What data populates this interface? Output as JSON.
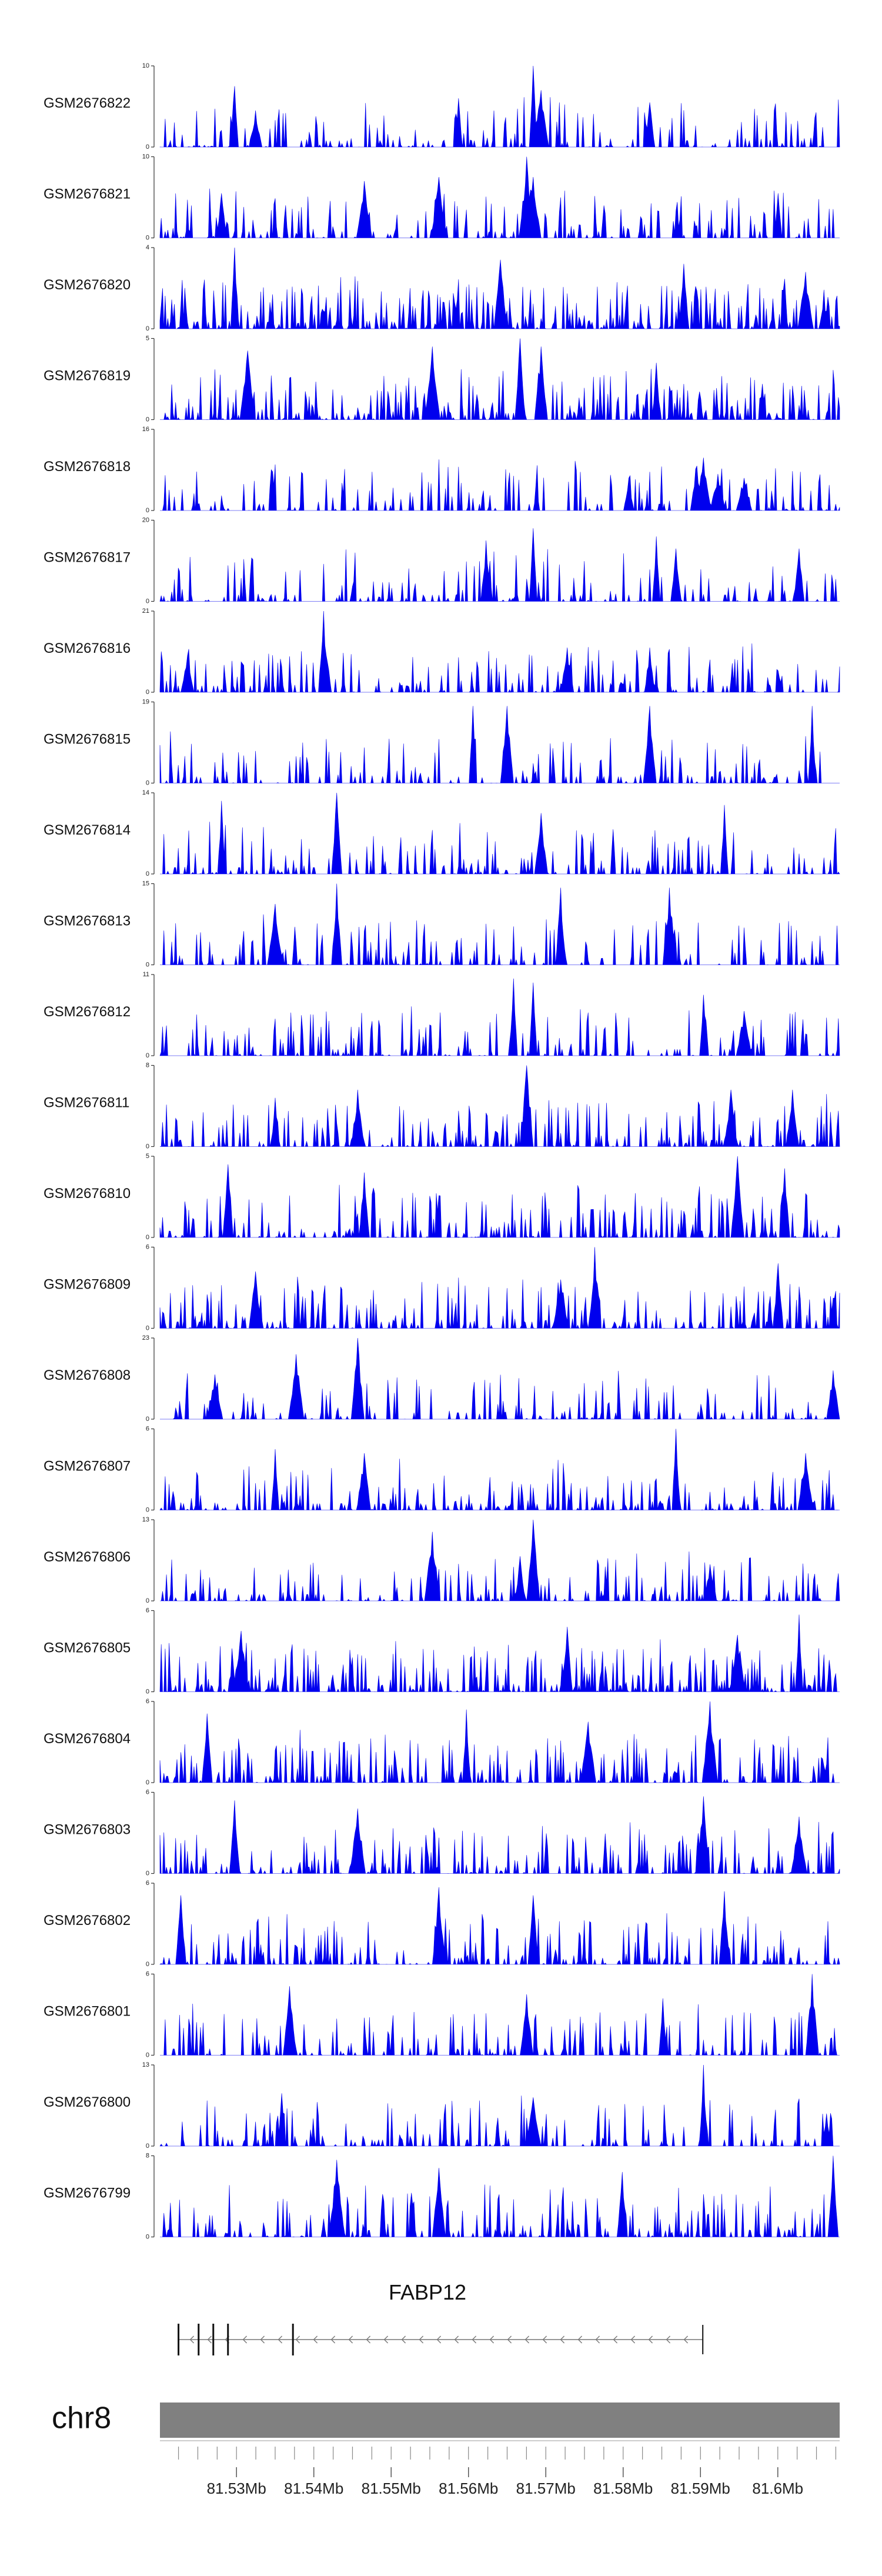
{
  "colors": {
    "signal": "#0000ee",
    "axis": "#333333",
    "ideogram": "#808080",
    "gene": "#111111"
  },
  "chart_data": {
    "type": "area",
    "description_free": true,
    "tracks": [
      {
        "name": "GSM2676822",
        "ymax": 10,
        "ymin": 0,
        "seed": 22,
        "density": 0.55,
        "peaks": [
          [
            0.11,
            0.75
          ],
          [
            0.14,
            0.45
          ],
          [
            0.44,
            0.6
          ],
          [
            0.55,
            1.0
          ],
          [
            0.56,
            0.7
          ],
          [
            0.72,
            0.55
          ]
        ]
      },
      {
        "name": "GSM2676821",
        "ymax": 10,
        "ymin": 0,
        "seed": 21,
        "density": 0.6,
        "peaks": [
          [
            0.09,
            0.55
          ],
          [
            0.3,
            0.7
          ],
          [
            0.41,
            0.75
          ],
          [
            0.54,
            1.0
          ],
          [
            0.55,
            0.75
          ],
          [
            0.91,
            0.55
          ]
        ]
      },
      {
        "name": "GSM2676820",
        "ymax": 4,
        "ymin": 0,
        "seed": 20,
        "density": 0.95,
        "peaks": [
          [
            0.11,
            1.0
          ],
          [
            0.5,
            0.85
          ],
          [
            0.77,
            0.8
          ],
          [
            0.95,
            0.7
          ]
        ]
      },
      {
        "name": "GSM2676819",
        "ymax": 5,
        "ymin": 0,
        "seed": 19,
        "density": 0.85,
        "peaks": [
          [
            0.13,
            0.85
          ],
          [
            0.4,
            0.9
          ],
          [
            0.53,
            1.0
          ],
          [
            0.56,
            0.9
          ],
          [
            0.73,
            0.7
          ]
        ]
      },
      {
        "name": "GSM2676818",
        "ymax": 16,
        "ymin": 0,
        "seed": 18,
        "density": 0.45,
        "peaks": [
          [
            0.8,
            0.65
          ],
          [
            0.82,
            0.45
          ],
          [
            0.79,
            0.55
          ],
          [
            0.86,
            0.4
          ],
          [
            0.69,
            0.4
          ]
        ]
      },
      {
        "name": "GSM2676817",
        "ymax": 20,
        "ymin": 0,
        "seed": 17,
        "density": 0.45,
        "peaks": [
          [
            0.48,
            0.75
          ],
          [
            0.55,
            0.9
          ],
          [
            0.73,
            0.8
          ],
          [
            0.76,
            0.65
          ],
          [
            0.94,
            0.65
          ]
        ]
      },
      {
        "name": "GSM2676816",
        "ymax": 21,
        "ymin": 0,
        "seed": 16,
        "density": 0.55,
        "peaks": [
          [
            0.24,
            1.0
          ],
          [
            0.6,
            0.55
          ],
          [
            0.72,
            0.55
          ],
          [
            0.04,
            0.45
          ]
        ]
      },
      {
        "name": "GSM2676815",
        "ymax": 19,
        "ymin": 0,
        "seed": 15,
        "density": 0.45,
        "peaks": [
          [
            0.46,
            0.95
          ],
          [
            0.51,
            0.95
          ],
          [
            0.72,
            0.95
          ],
          [
            0.96,
            0.95
          ]
        ]
      },
      {
        "name": "GSM2676814",
        "ymax": 14,
        "ymin": 0,
        "seed": 14,
        "density": 0.5,
        "peaks": [
          [
            0.09,
            0.9
          ],
          [
            0.26,
            1.0
          ],
          [
            0.83,
            0.85
          ],
          [
            0.56,
            0.75
          ]
        ]
      },
      {
        "name": "GSM2676813",
        "ymax": 15,
        "ymin": 0,
        "seed": 13,
        "density": 0.5,
        "peaks": [
          [
            0.26,
            1.0
          ],
          [
            0.59,
            0.95
          ],
          [
            0.75,
            0.95
          ],
          [
            0.17,
            0.75
          ]
        ]
      },
      {
        "name": "GSM2676812",
        "ymax": 11,
        "ymin": 0,
        "seed": 12,
        "density": 0.55,
        "peaks": [
          [
            0.52,
            0.95
          ],
          [
            0.55,
            0.9
          ],
          [
            0.8,
            0.75
          ],
          [
            0.86,
            0.55
          ]
        ]
      },
      {
        "name": "GSM2676811",
        "ymax": 8,
        "ymin": 0,
        "seed": 11,
        "density": 0.6,
        "peaks": [
          [
            0.54,
            1.0
          ],
          [
            0.29,
            0.7
          ],
          [
            0.84,
            0.7
          ],
          [
            0.93,
            0.7
          ],
          [
            0.17,
            0.6
          ]
        ]
      },
      {
        "name": "GSM2676810",
        "ymax": 5,
        "ymin": 0,
        "seed": 10,
        "density": 0.7,
        "peaks": [
          [
            0.1,
            0.9
          ],
          [
            0.85,
            1.0
          ],
          [
            0.92,
            0.85
          ],
          [
            0.3,
            0.8
          ]
        ]
      },
      {
        "name": "GSM2676809",
        "ymax": 6,
        "ymin": 0,
        "seed": 9,
        "density": 0.65,
        "peaks": [
          [
            0.64,
            1.0
          ],
          [
            0.14,
            0.7
          ],
          [
            0.91,
            0.8
          ],
          [
            0.59,
            0.6
          ]
        ]
      },
      {
        "name": "GSM2676808",
        "ymax": 23,
        "ymin": 0,
        "seed": 8,
        "density": 0.45,
        "peaks": [
          [
            0.29,
            1.0
          ],
          [
            0.2,
            0.8
          ],
          [
            0.08,
            0.55
          ],
          [
            0.99,
            0.6
          ]
        ]
      },
      {
        "name": "GSM2676807",
        "ymax": 6,
        "ymin": 0,
        "seed": 7,
        "density": 0.65,
        "peaks": [
          [
            0.76,
            1.0
          ],
          [
            0.17,
            0.75
          ],
          [
            0.3,
            0.7
          ],
          [
            0.95,
            0.7
          ]
        ]
      },
      {
        "name": "GSM2676806",
        "ymax": 13,
        "ymin": 0,
        "seed": 6,
        "density": 0.45,
        "peaks": [
          [
            0.55,
            1.0
          ],
          [
            0.4,
            0.85
          ],
          [
            0.53,
            0.55
          ],
          [
            0.81,
            0.45
          ]
        ]
      },
      {
        "name": "GSM2676805",
        "ymax": 6,
        "ymin": 0,
        "seed": 5,
        "density": 0.9,
        "peaks": [
          [
            0.94,
            0.95
          ],
          [
            0.12,
            0.75
          ],
          [
            0.6,
            0.8
          ],
          [
            0.85,
            0.7
          ]
        ]
      },
      {
        "name": "GSM2676804",
        "ymax": 6,
        "ymin": 0,
        "seed": 4,
        "density": 0.65,
        "peaks": [
          [
            0.45,
            0.9
          ],
          [
            0.81,
            1.0
          ],
          [
            0.07,
            0.85
          ],
          [
            0.63,
            0.75
          ]
        ]
      },
      {
        "name": "GSM2676803",
        "ymax": 6,
        "ymin": 0,
        "seed": 3,
        "density": 0.6,
        "peaks": [
          [
            0.11,
            0.9
          ],
          [
            0.8,
            0.95
          ],
          [
            0.29,
            0.8
          ],
          [
            0.94,
            0.7
          ]
        ]
      },
      {
        "name": "GSM2676802",
        "ymax": 6,
        "ymin": 0,
        "seed": 2,
        "density": 0.6,
        "peaks": [
          [
            0.41,
            0.95
          ],
          [
            0.03,
            0.85
          ],
          [
            0.83,
            0.9
          ],
          [
            0.55,
            0.85
          ]
        ]
      },
      {
        "name": "GSM2676801",
        "ymax": 6,
        "ymin": 0,
        "seed": 1,
        "density": 0.55,
        "peaks": [
          [
            0.96,
            1.0
          ],
          [
            0.19,
            0.85
          ],
          [
            0.74,
            0.7
          ],
          [
            0.54,
            0.75
          ]
        ]
      },
      {
        "name": "GSM2676800",
        "ymax": 13,
        "ymin": 0,
        "seed": 100,
        "density": 0.45,
        "peaks": [
          [
            0.8,
            1.0
          ],
          [
            0.18,
            0.65
          ],
          [
            0.55,
            0.6
          ],
          [
            0.98,
            0.4
          ]
        ]
      },
      {
        "name": "GSM2676799",
        "ymax": 8,
        "ymin": 0,
        "seed": 99,
        "density": 0.6,
        "peaks": [
          [
            0.26,
            0.95
          ],
          [
            0.99,
            1.0
          ],
          [
            0.41,
            0.85
          ],
          [
            0.68,
            0.8
          ]
        ]
      }
    ],
    "gene": {
      "name": "FABP12",
      "start_mb": 81.5225,
      "end_mb": 81.5903,
      "strand": "-",
      "exons_mb": [
        81.5225,
        81.5251,
        81.527,
        81.5289,
        81.5373
      ]
    },
    "chromosome": "chr8",
    "region_mb": [
      81.5201,
      81.608
    ],
    "axis_ticks": [
      {
        "value": 81.53,
        "label": "81.53Mb"
      },
      {
        "value": 81.54,
        "label": "81.54Mb"
      },
      {
        "value": 81.55,
        "label": "81.55Mb"
      },
      {
        "value": 81.56,
        "label": "81.56Mb"
      },
      {
        "value": 81.57,
        "label": "81.57Mb"
      },
      {
        "value": 81.58,
        "label": "81.58Mb"
      },
      {
        "value": 81.59,
        "label": "81.59Mb"
      },
      {
        "value": 81.6,
        "label": "81.6Mb"
      }
    ]
  }
}
